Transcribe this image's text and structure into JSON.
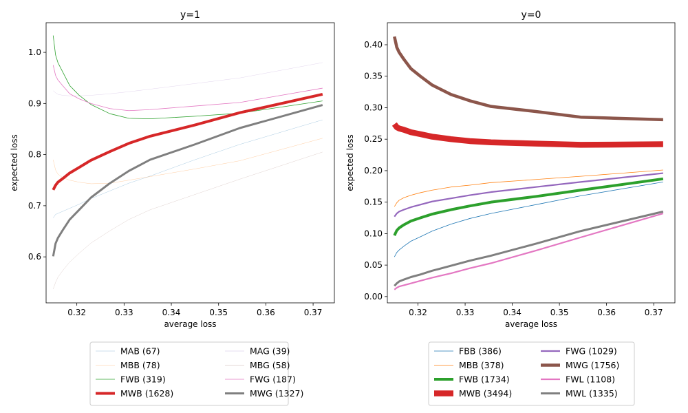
{
  "chart_data": [
    {
      "type": "line",
      "title": "y=1",
      "xlabel": "average loss",
      "ylabel": "expected loss",
      "xlim": [
        0.3135,
        0.3745
      ],
      "ylim": [
        0.51,
        1.058
      ],
      "xticks": [
        0.32,
        0.33,
        0.34,
        0.35,
        0.36,
        0.37
      ],
      "yticks": [
        0.6,
        0.7,
        0.8,
        0.9,
        1.0
      ],
      "grid": false,
      "legend_position": "below",
      "x": [
        0.315,
        0.3155,
        0.316,
        0.317,
        0.3185,
        0.3205,
        0.323,
        0.327,
        0.331,
        0.3355,
        0.345,
        0.3545,
        0.372
      ],
      "series": [
        {
          "name": "MAB (67)",
          "color": "#1f77b4",
          "width": 0.35,
          "values": [
            0.676,
            0.683,
            0.685,
            0.689,
            0.695,
            0.703,
            0.714,
            0.729,
            0.744,
            0.758,
            0.79,
            0.82,
            0.868
          ]
        },
        {
          "name": "MAG (39)",
          "color": "#9467bd",
          "width": 0.25,
          "values": [
            0.925,
            0.921,
            0.918,
            0.916,
            0.915,
            0.915,
            0.916,
            0.919,
            0.923,
            0.928,
            0.939,
            0.95,
            0.98
          ]
        },
        {
          "name": "MBB (78)",
          "color": "#ff7f0e",
          "width": 0.35,
          "values": [
            0.79,
            0.77,
            0.762,
            0.755,
            0.75,
            0.746,
            0.743,
            0.744,
            0.75,
            0.757,
            0.772,
            0.788,
            0.832
          ]
        },
        {
          "name": "MBG (58)",
          "color": "#8c564b",
          "width": 0.25,
          "values": [
            0.537,
            0.55,
            0.56,
            0.573,
            0.59,
            0.607,
            0.627,
            0.651,
            0.673,
            0.692,
            0.722,
            0.752,
            0.805
          ]
        },
        {
          "name": "FWB (319)",
          "color": "#2ca02c",
          "width": 0.8,
          "values": [
            1.033,
            0.995,
            0.98,
            0.962,
            0.935,
            0.916,
            0.898,
            0.88,
            0.871,
            0.87,
            0.875,
            0.881,
            0.905
          ]
        },
        {
          "name": "FWG (187)",
          "color": "#e377c2",
          "width": 0.8,
          "values": [
            0.975,
            0.955,
            0.946,
            0.935,
            0.919,
            0.909,
            0.9,
            0.89,
            0.886,
            0.888,
            0.895,
            0.902,
            0.93
          ]
        },
        {
          "name": "MWB (1628)",
          "color": "#d62728",
          "width": 4,
          "values": [
            0.731,
            0.74,
            0.746,
            0.753,
            0.764,
            0.775,
            0.789,
            0.806,
            0.822,
            0.836,
            0.858,
            0.882,
            0.918
          ]
        },
        {
          "name": "MWG (1327)",
          "color": "#7f7f7f",
          "width": 3,
          "values": [
            0.601,
            0.626,
            0.637,
            0.652,
            0.673,
            0.692,
            0.716,
            0.744,
            0.768,
            0.79,
            0.82,
            0.852,
            0.897
          ]
        }
      ]
    },
    {
      "type": "line",
      "title": "y=0",
      "xlabel": "average loss",
      "ylabel": "expected loss",
      "xlim": [
        0.3135,
        0.3745
      ],
      "ylim": [
        -0.01,
        0.435
      ],
      "xticks": [
        0.32,
        0.33,
        0.34,
        0.35,
        0.36,
        0.37
      ],
      "yticks": [
        0.0,
        0.05,
        0.1,
        0.15,
        0.2,
        0.25,
        0.3,
        0.35,
        0.4
      ],
      "ytick_labels": [
        "0.00",
        "0.05",
        "0.10",
        "0.15",
        "0.20",
        "0.25",
        "0.30",
        "0.35",
        "0.40"
      ],
      "grid": false,
      "legend_position": "below",
      "x": [
        0.315,
        0.3155,
        0.316,
        0.317,
        0.3185,
        0.3205,
        0.323,
        0.327,
        0.331,
        0.3355,
        0.345,
        0.3545,
        0.372
      ],
      "series": [
        {
          "name": "FBB (386)",
          "color": "#1f77b4",
          "width": 0.8,
          "values": [
            0.063,
            0.07,
            0.074,
            0.08,
            0.088,
            0.095,
            0.104,
            0.115,
            0.124,
            0.132,
            0.146,
            0.16,
            0.182
          ]
        },
        {
          "name": "FWG (1029)",
          "color": "#9467bd",
          "width": 2.2,
          "values": [
            0.127,
            0.132,
            0.135,
            0.138,
            0.142,
            0.146,
            0.151,
            0.156,
            0.161,
            0.166,
            0.174,
            0.182,
            0.196
          ]
        },
        {
          "name": "MBB (378)",
          "color": "#ff7f0e",
          "width": 0.8,
          "values": [
            0.143,
            0.149,
            0.153,
            0.157,
            0.161,
            0.165,
            0.169,
            0.174,
            0.177,
            0.181,
            0.186,
            0.191,
            0.201
          ]
        },
        {
          "name": "MWG (1756)",
          "color": "#8c564b",
          "width": 4.5,
          "values": [
            0.413,
            0.396,
            0.388,
            0.377,
            0.362,
            0.35,
            0.336,
            0.321,
            0.311,
            0.302,
            0.294,
            0.285,
            0.281
          ]
        },
        {
          "name": "FWB (1734)",
          "color": "#2ca02c",
          "width": 4,
          "values": [
            0.097,
            0.105,
            0.109,
            0.114,
            0.12,
            0.125,
            0.131,
            0.138,
            0.144,
            0.15,
            0.159,
            0.169,
            0.187
          ]
        },
        {
          "name": "FWL (1108)",
          "color": "#e377c2",
          "width": 2.2,
          "values": [
            0.011,
            0.014,
            0.016,
            0.018,
            0.021,
            0.025,
            0.03,
            0.037,
            0.045,
            0.053,
            0.073,
            0.094,
            0.132
          ]
        },
        {
          "name": "MWB (3494)",
          "color": "#d62728",
          "width": 8.5,
          "values": [
            0.274,
            0.269,
            0.267,
            0.265,
            0.261,
            0.258,
            0.254,
            0.25,
            0.247,
            0.245,
            0.243,
            0.241,
            0.242
          ]
        },
        {
          "name": "MWL (1335)",
          "color": "#7f7f7f",
          "width": 3,
          "values": [
            0.017,
            0.021,
            0.024,
            0.027,
            0.031,
            0.035,
            0.041,
            0.049,
            0.057,
            0.065,
            0.084,
            0.104,
            0.135
          ]
        }
      ]
    }
  ]
}
